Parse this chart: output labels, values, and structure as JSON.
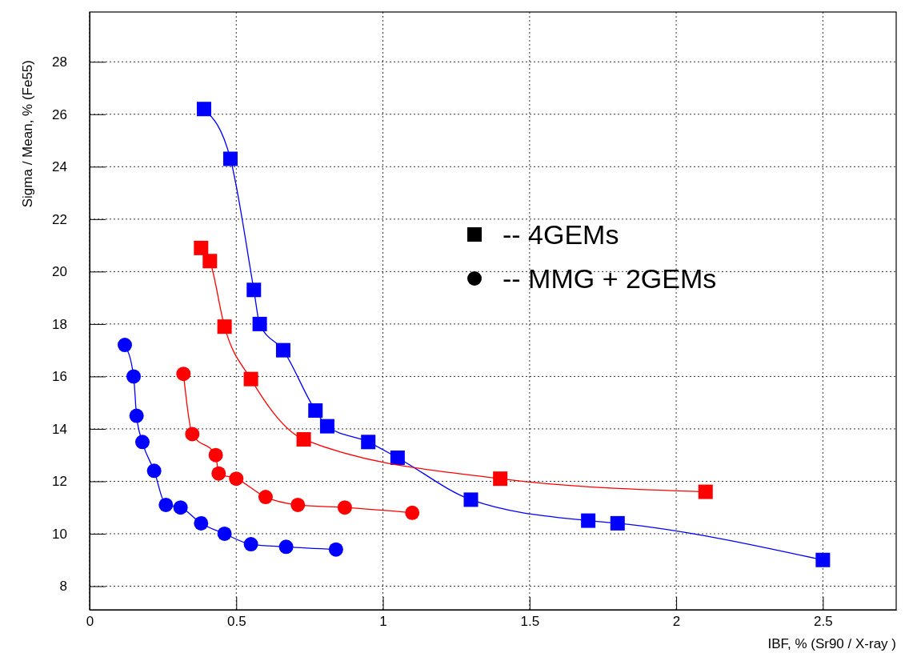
{
  "chart_data": {
    "type": "line",
    "xlabel": "IBF, % (Sr90 / X-ray )",
    "ylabel": "Sigma / Mean, % (Fe55)",
    "xlim": [
      0,
      2.75
    ],
    "ylim": [
      7.1,
      29.9
    ],
    "xticks": [
      0,
      0.5,
      1,
      1.5,
      2,
      2.5
    ],
    "yticks": [
      8,
      10,
      12,
      14,
      16,
      18,
      20,
      22,
      24,
      26,
      28
    ],
    "grid": true,
    "line_style": "solid",
    "series": [
      {
        "color": "#0000ff",
        "marker": "square",
        "x": [
          0.39,
          0.48,
          0.56,
          0.58,
          0.66,
          0.77,
          0.81,
          0.95,
          1.05,
          1.3,
          1.7,
          1.8,
          2.5
        ],
        "values": [
          26.2,
          24.3,
          19.3,
          18.0,
          17.0,
          14.7,
          14.1,
          13.5,
          12.9,
          11.3,
          10.5,
          10.4,
          9.0
        ]
      },
      {
        "color": "#ff0000",
        "marker": "square",
        "x": [
          0.38,
          0.41,
          0.46,
          0.55,
          0.73,
          1.4,
          2.1
        ],
        "values": [
          20.9,
          20.4,
          17.9,
          15.9,
          13.6,
          12.1,
          11.6
        ]
      },
      {
        "color": "#0000ff",
        "marker": "circle",
        "x": [
          0.12,
          0.15,
          0.16,
          0.18,
          0.22,
          0.26,
          0.31,
          0.38,
          0.46,
          0.55,
          0.67,
          0.84
        ],
        "values": [
          17.2,
          16.0,
          14.5,
          13.5,
          12.4,
          11.1,
          11.0,
          10.4,
          10.0,
          9.6,
          9.5,
          9.4
        ]
      },
      {
        "color": "#ff0000",
        "marker": "circle",
        "x": [
          0.32,
          0.35,
          0.43,
          0.44,
          0.5,
          0.6,
          0.71,
          0.87,
          1.1
        ],
        "values": [
          16.1,
          13.8,
          13.0,
          12.3,
          12.1,
          11.4,
          11.1,
          11.0,
          10.8
        ]
      }
    ],
    "annotations": [
      "-- 4GEMs",
      "-- MMG + 2GEMs"
    ]
  }
}
